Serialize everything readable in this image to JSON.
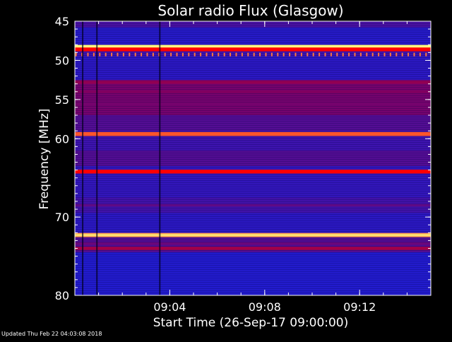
{
  "footer_text": "Updated Thu Feb 22 04:03:08 2018",
  "colors": {
    "background": "#000000",
    "axes": "#ffffff",
    "spectrum_low": "#1020e0",
    "spectrum_mid": "#800060",
    "spectrum_high": "#ff0000",
    "spectrum_peak": "#ffff80"
  },
  "chart_data": {
    "type": "heatmap",
    "title": "Solar radio Flux (Glasgow)",
    "xlabel": "Start Time (26-Sep-17 09:00:00)",
    "ylabel": "Frequency [MHz]",
    "x_unit": "minutes after 09:00:00",
    "xlim": [
      0,
      15
    ],
    "ylim": [
      45,
      80
    ],
    "y_inverted": true,
    "x_ticks": [
      {
        "value": 4,
        "label": "09:04"
      },
      {
        "value": 8,
        "label": "09:08"
      },
      {
        "value": 12,
        "label": "09:12"
      }
    ],
    "y_ticks": [
      {
        "value": 45,
        "label": "45"
      },
      {
        "value": 50,
        "label": "50"
      },
      {
        "value": 55,
        "label": "55"
      },
      {
        "value": 60,
        "label": "60"
      },
      {
        "value": 70,
        "label": "70"
      },
      {
        "value": 80,
        "label": "80"
      }
    ],
    "background_levels": [
      {
        "from": 45.0,
        "to": 45.8,
        "intensity": 0.25
      },
      {
        "from": 45.8,
        "to": 48.0,
        "intensity": 0.1
      },
      {
        "from": 48.0,
        "to": 49.5,
        "intensity": 0.2
      },
      {
        "from": 49.5,
        "to": 52.5,
        "intensity": 0.12
      },
      {
        "from": 52.5,
        "to": 57.0,
        "intensity": 0.45
      },
      {
        "from": 57.0,
        "to": 59.0,
        "intensity": 0.3
      },
      {
        "from": 59.0,
        "to": 61.5,
        "intensity": 0.2
      },
      {
        "from": 61.5,
        "to": 63.5,
        "intensity": 0.3
      },
      {
        "from": 63.5,
        "to": 67.5,
        "intensity": 0.15
      },
      {
        "from": 67.5,
        "to": 69.5,
        "intensity": 0.22
      },
      {
        "from": 69.5,
        "to": 72.0,
        "intensity": 0.12
      },
      {
        "from": 72.0,
        "to": 74.5,
        "intensity": 0.3
      },
      {
        "from": 74.5,
        "to": 80.0,
        "intensity": 0.08
      }
    ],
    "emission_bands": [
      {
        "frequency": 48.3,
        "intensity": 1.0
      },
      {
        "frequency": 48.6,
        "intensity": 0.85
      },
      {
        "frequency": 52.8,
        "intensity": 0.55
      },
      {
        "frequency": 54.0,
        "intensity": 0.5
      },
      {
        "frequency": 55.6,
        "intensity": 0.45
      },
      {
        "frequency": 59.4,
        "intensity": 0.9
      },
      {
        "frequency": 64.2,
        "intensity": 0.85
      },
      {
        "frequency": 68.5,
        "intensity": 0.35
      },
      {
        "frequency": 72.3,
        "intensity": 0.95
      },
      {
        "frequency": 73.4,
        "intensity": 0.4
      },
      {
        "frequency": 74.0,
        "intensity": 0.6
      }
    ],
    "periodic_bursts": {
      "frequency": 49.3,
      "period_minutes": 0.25,
      "intensity": 0.8
    },
    "dark_columns": [
      0.3,
      0.9,
      3.55
    ]
  }
}
